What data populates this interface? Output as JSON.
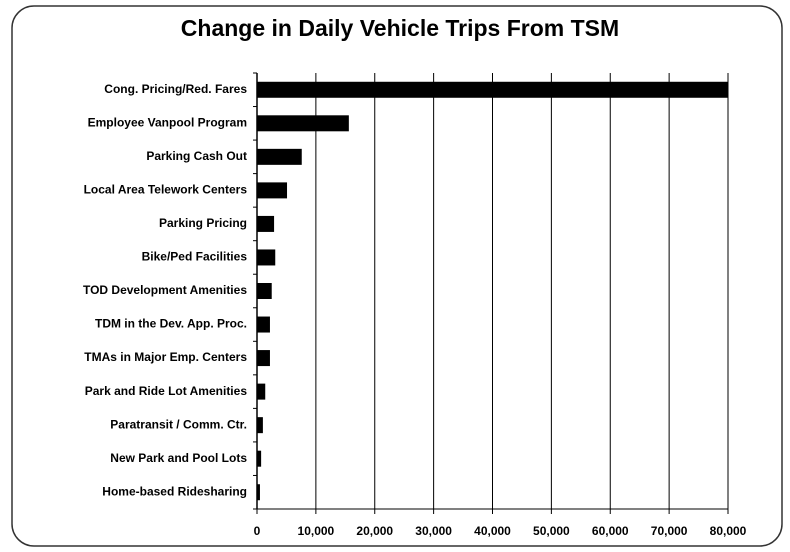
{
  "chart_data": {
    "type": "bar",
    "title": "Change in Daily Vehicle Trips From TSM",
    "categories": [
      "Cong. Pricing/Red. Fares",
      "Employee Vanpool Program",
      "Parking Cash Out",
      "Local Area Telework Centers",
      "Parking Pricing",
      "Bike/Ped Facilities",
      "TOD Development Amenities",
      "TDM in the Dev. App. Proc.",
      "TMAs in Major Emp. Centers",
      "Park and Ride Lot Amenities",
      "Paratransit / Comm. Ctr.",
      "New Park and Pool Lots",
      "Home-based Ridesharing"
    ],
    "values": [
      80000,
      15600,
      7600,
      5100,
      2900,
      3100,
      2500,
      2200,
      2200,
      1400,
      1000,
      700,
      500
    ],
    "color": "#000000",
    "xlim": [
      0,
      80000
    ],
    "xticks": [
      0,
      {
        "value": 10000,
        "label": "10,000"
      },
      {
        "value": 20000,
        "label": "20,000"
      },
      {
        "value": 30000,
        "label": "30,000"
      },
      {
        "value": 40000,
        "label": "40,000"
      },
      {
        "value": 50000,
        "label": "50,000"
      },
      {
        "value": 60000,
        "label": "60,000"
      },
      {
        "value": 70000,
        "label": "70,000"
      },
      {
        "value": 80000,
        "label": "80,000"
      }
    ],
    "grid": true
  }
}
